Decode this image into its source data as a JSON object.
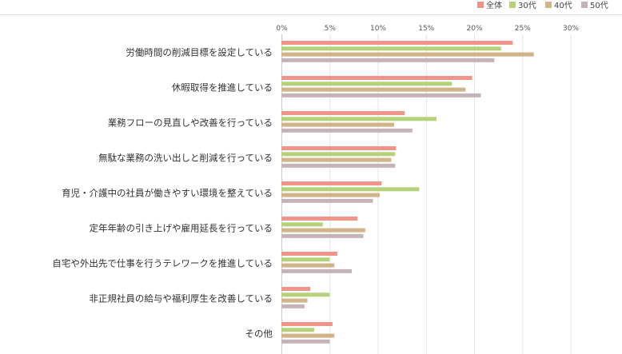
{
  "chart_data": {
    "type": "bar",
    "orientation": "horizontal",
    "categories": [
      "労働時間の削減目標を設定している",
      "休暇取得を推進している",
      "業務フローの見直しや改善を行っている",
      "無駄な業務の洗い出しと削減を行っている",
      "育児・介護中の社員が働きやすい環境を整えている",
      "定年年齢の引き上げや雇用延長を行っている",
      "自宅や外出先で仕事を行うテレワークを推進している",
      "非正規社員の給与や福利厚生を改善している",
      "その他"
    ],
    "series": [
      {
        "name": "全体",
        "color": "#f0948a",
        "values": [
          24.0,
          19.8,
          12.8,
          11.9,
          10.4,
          7.9,
          5.8,
          3.0,
          5.3
        ]
      },
      {
        "name": "30代",
        "color": "#b5d17a",
        "values": [
          22.8,
          17.7,
          16.1,
          11.8,
          14.3,
          4.3,
          5.0,
          5.0,
          3.4
        ]
      },
      {
        "name": "40代",
        "color": "#d2b487",
        "values": [
          26.2,
          19.1,
          11.7,
          11.4,
          10.2,
          8.7,
          5.5,
          2.7,
          5.5
        ]
      },
      {
        "name": "50代",
        "color": "#c4b4b8",
        "values": [
          22.1,
          20.7,
          13.6,
          11.8,
          9.5,
          8.5,
          7.3,
          2.4,
          5.0
        ]
      }
    ],
    "x_ticks": [
      "0%",
      "5%",
      "10%",
      "15%",
      "20%",
      "25%",
      "30%"
    ],
    "xlim": [
      0,
      30
    ],
    "legend_position": "top-right",
    "grid": true
  }
}
